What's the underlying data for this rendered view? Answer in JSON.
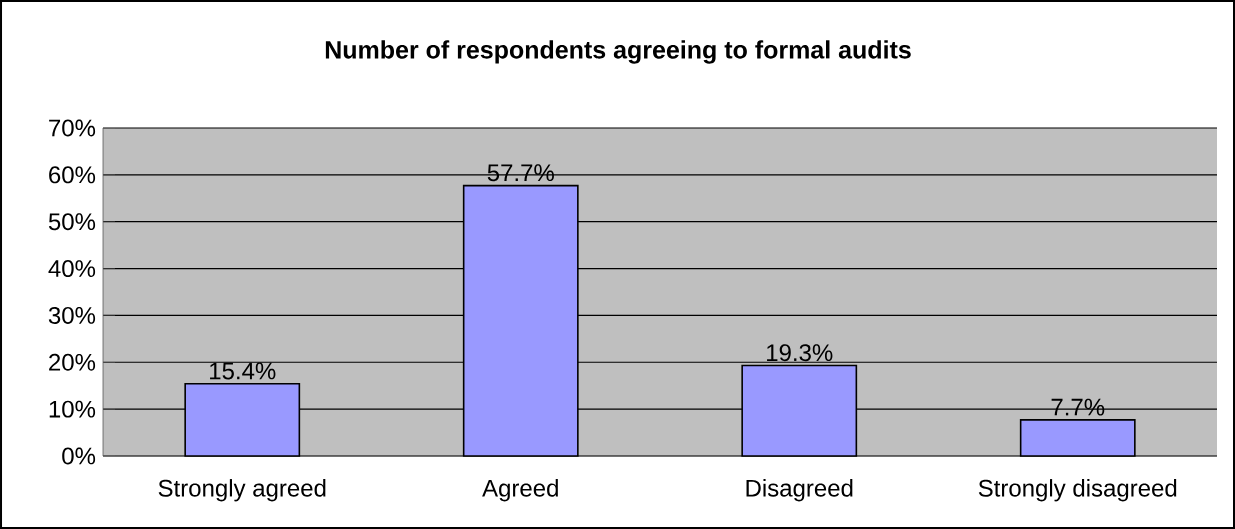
{
  "chart_data": {
    "type": "bar",
    "title": "Number of respondents agreeing to formal audits",
    "categories": [
      "Strongly agreed",
      "Agreed",
      "Disagreed",
      "Strongly disagreed"
    ],
    "values": [
      15.4,
      57.7,
      19.3,
      7.7
    ],
    "value_labels": [
      "15.4%",
      "57.7%",
      "19.3%",
      "7.7%"
    ],
    "color": "#9999ff",
    "ylim": [
      0,
      70
    ],
    "yticks": [
      {
        "value": 0,
        "label": "0%"
      },
      {
        "value": 10,
        "label": "10%"
      },
      {
        "value": 20,
        "label": "20%"
      },
      {
        "value": 30,
        "label": "30%"
      },
      {
        "value": 40,
        "label": "40%"
      },
      {
        "value": 50,
        "label": "50%"
      },
      {
        "value": 60,
        "label": "60%"
      },
      {
        "value": 70,
        "label": "70%"
      }
    ],
    "grid": "y"
  }
}
